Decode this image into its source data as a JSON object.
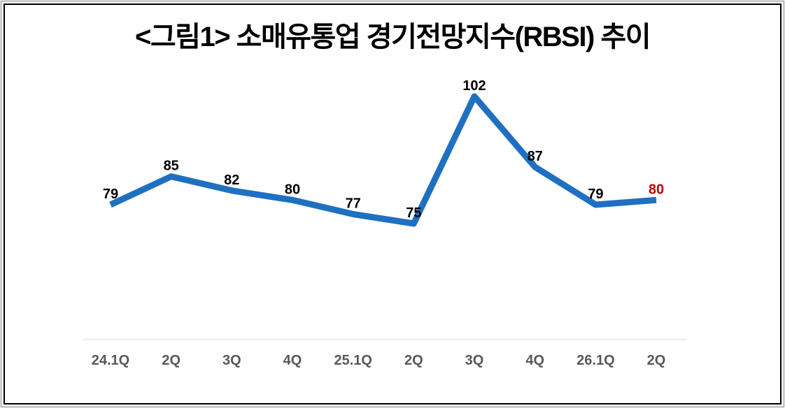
{
  "chart_data": {
    "type": "line",
    "title": "<그림1> 소매유통업 경기전망지수(RBSI) 추이",
    "categories": [
      "24.1Q",
      "2Q",
      "3Q",
      "4Q",
      "25.1Q",
      "2Q",
      "3Q",
      "4Q",
      "26.1Q",
      "2Q"
    ],
    "values": [
      79,
      85,
      82,
      80,
      77,
      75,
      102,
      87,
      79,
      80
    ],
    "data_labels": [
      "79",
      "85",
      "82",
      "80",
      "77",
      "75",
      "102",
      "87",
      "79",
      "80"
    ],
    "data_label_colors": [
      "#000000",
      "#000000",
      "#000000",
      "#000000",
      "#000000",
      "#000000",
      "#000000",
      "#000000",
      "#000000",
      "#C00000"
    ],
    "highlight_last_value_color": "#C00000",
    "line_color": "#1F70C0",
    "x_tick_color": "#595959",
    "axis_line_color": "#E7E7E7",
    "xlabel": "",
    "ylabel": "",
    "y_axis_visible": false,
    "x_axis_visible": true,
    "grid": false,
    "legend": "none",
    "value_range_shown": [
      75,
      102
    ]
  }
}
